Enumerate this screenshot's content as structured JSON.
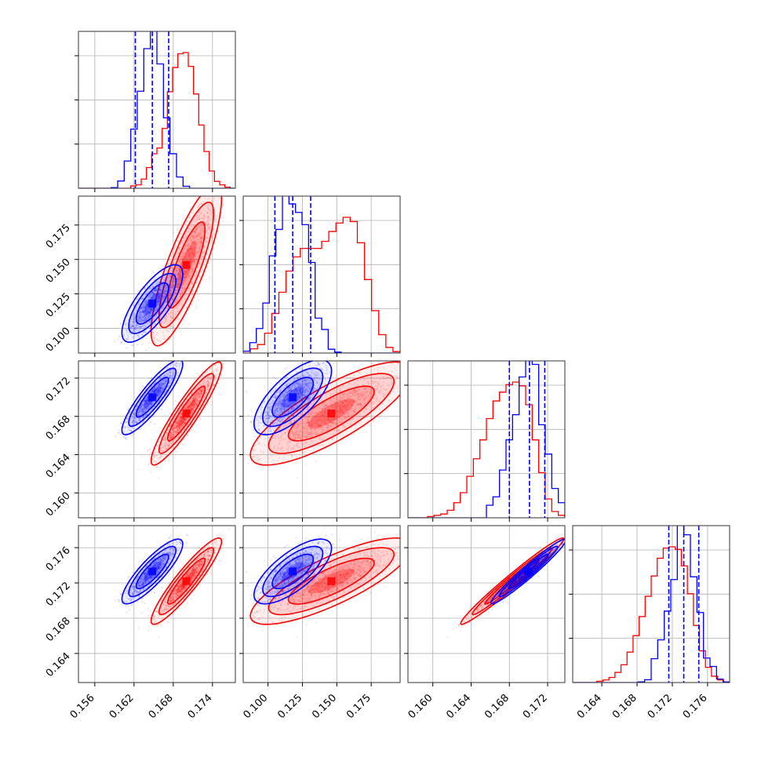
{
  "chart_data": {
    "type": "corner",
    "colors": {
      "series_a": "#0000ff",
      "series_b": "#ff0000"
    },
    "grid": true,
    "dims": [
      {
        "range": [
          0.1535,
          0.1775
        ],
        "ticks": [
          0.156,
          0.162,
          0.168,
          0.174
        ],
        "tick_labels": [
          "0.156",
          "0.162",
          "0.168",
          "0.174"
        ]
      },
      {
        "range": [
          0.082,
          0.196
        ],
        "ticks": [
          0.1,
          0.125,
          0.15,
          0.175
        ],
        "tick_labels": [
          "0.100",
          "0.125",
          "0.150",
          "0.175"
        ]
      },
      {
        "range": [
          0.1574,
          0.1738
        ],
        "ticks": [
          0.16,
          0.164,
          0.168,
          0.172
        ],
        "tick_labels": [
          "0.160",
          "0.164",
          "0.168",
          "0.172"
        ]
      },
      {
        "range": [
          0.1607,
          0.1785
        ],
        "ticks": [
          0.164,
          0.168,
          0.172,
          0.176
        ],
        "tick_labels": [
          "0.164",
          "0.168",
          "0.172",
          "0.176"
        ]
      }
    ],
    "series": [
      {
        "color": "#0000ff",
        "mean": [
          0.1648,
          0.118,
          0.17,
          0.1733
        ],
        "sd": [
          0.0019,
          0.0115,
          0.0016,
          0.0015
        ],
        "corr": [
          [
            1,
            0.75,
            0.88,
            0.85
          ],
          [
            0.75,
            1,
            0.7,
            0.72
          ],
          [
            0.88,
            0.7,
            1,
            0.97
          ],
          [
            0.85,
            0.72,
            0.97,
            1
          ]
        ],
        "quantiles": [
          [
            0.1622,
            0.1648,
            0.1673
          ],
          [
            0.105,
            0.118,
            0.131
          ],
          [
            0.168,
            0.1701,
            0.1717
          ],
          [
            0.1716,
            0.1733,
            0.175
          ]
        ]
      },
      {
        "color": "#ff0000",
        "mean": [
          0.17,
          0.146,
          0.1683,
          0.1722
        ],
        "sd": [
          0.0022,
          0.024,
          0.0022,
          0.002
        ],
        "corr": [
          [
            1,
            0.82,
            0.92,
            0.92
          ],
          [
            0.82,
            1,
            0.8,
            0.8
          ],
          [
            0.92,
            0.8,
            1,
            0.98
          ],
          [
            0.92,
            0.8,
            0.98,
            1
          ]
        ],
        "histograms": [
          {
            "edges": [
              0.1535,
              0.1775
            ],
            "counts": [
              0,
              0,
              0,
              0,
              0,
              0,
              0,
              0,
              0,
              0,
              2,
              3,
              8,
              18,
              30,
              35,
              52,
              84,
              105,
              117,
              118,
              106,
              82,
              55,
              32,
              15,
              6,
              3,
              1,
              0
            ]
          },
          {
            "edges": [
              0.082,
              0.196
            ],
            "counts": [
              0,
              3,
              6,
              14,
              28,
              43,
              58,
              68,
              74,
              74,
              74,
              79,
              86,
              92,
              96,
              93,
              78,
              52,
              30,
              13,
              4,
              1
            ]
          },
          {
            "edges": [
              0.1574,
              0.1738
            ],
            "counts": [
              0,
              0,
              0,
              1,
              2,
              3,
              6,
              12,
              20,
              33,
              47,
              62,
              79,
              93,
              100,
              106,
              108,
              105,
              90,
              62,
              36,
              15,
              5,
              2
            ]
          },
          {
            "edges": [
              0.1607,
              0.1785
            ],
            "counts": [
              0,
              0,
              0,
              0,
              1,
              2,
              4,
              8,
              14,
              24,
              37,
              52,
              68,
              84,
              98,
              106,
              107,
              105,
              92,
              70,
              45,
              25,
              12,
              5,
              2,
              0
            ]
          }
        ]
      }
    ]
  }
}
